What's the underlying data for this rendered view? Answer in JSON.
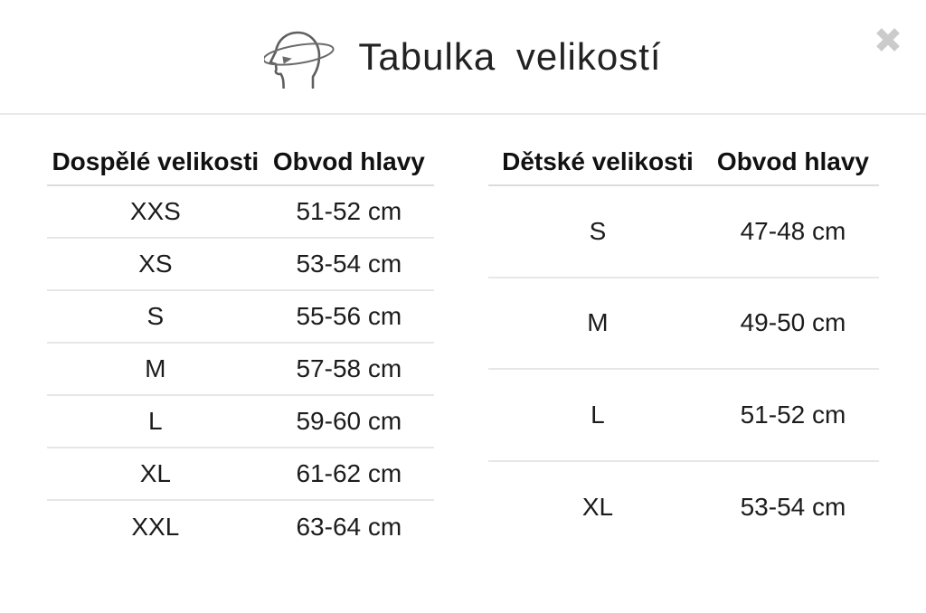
{
  "modal": {
    "title": "Tabulka velikostí",
    "close_icon": "✕"
  },
  "colors": {
    "background": "#ffffff",
    "text": "#1c1c1c",
    "divider": "#e9e9e9",
    "row_divider": "#e7e7e7",
    "close_icon": "#cbcbcb",
    "icon_stroke": "#5f5f5f"
  },
  "tables": {
    "adult": {
      "headers": {
        "size": "Dospělé velikosti",
        "circumference": "Obvod hlavy"
      },
      "rows": [
        [
          "XXS",
          "51-52 cm"
        ],
        [
          "XS",
          "53-54 cm"
        ],
        [
          "S",
          "55-56 cm"
        ],
        [
          "M",
          "57-58 cm"
        ],
        [
          "L",
          "59-60 cm"
        ],
        [
          "XL",
          "61-62 cm"
        ],
        [
          "XXL",
          "63-64 cm"
        ]
      ]
    },
    "children": {
      "headers": {
        "size": "Dětské velikosti",
        "circumference": "Obvod hlavy"
      },
      "rows": [
        [
          "S",
          "47-48 cm"
        ],
        [
          "M",
          "49-50 cm"
        ],
        [
          "L",
          "51-52 cm"
        ],
        [
          "XL",
          "53-54 cm"
        ]
      ]
    }
  }
}
